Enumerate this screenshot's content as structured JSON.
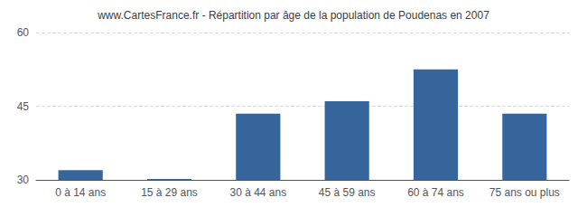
{
  "chart_data": {
    "type": "bar",
    "title": "www.CartesFrance.fr - Répartition par âge de la population de Poudenas en 2007",
    "categories": [
      "0 à 14 ans",
      "15 à 29 ans",
      "30 à 44 ans",
      "45 à 59 ans",
      "60 à 74 ans",
      "75 ans ou plus"
    ],
    "values": [
      32,
      30.2,
      43.5,
      46.0,
      52.5,
      43.5
    ],
    "color": "#36659c",
    "ylim": [
      30,
      60
    ],
    "yticks": [
      30,
      45,
      60
    ],
    "grid": true
  }
}
